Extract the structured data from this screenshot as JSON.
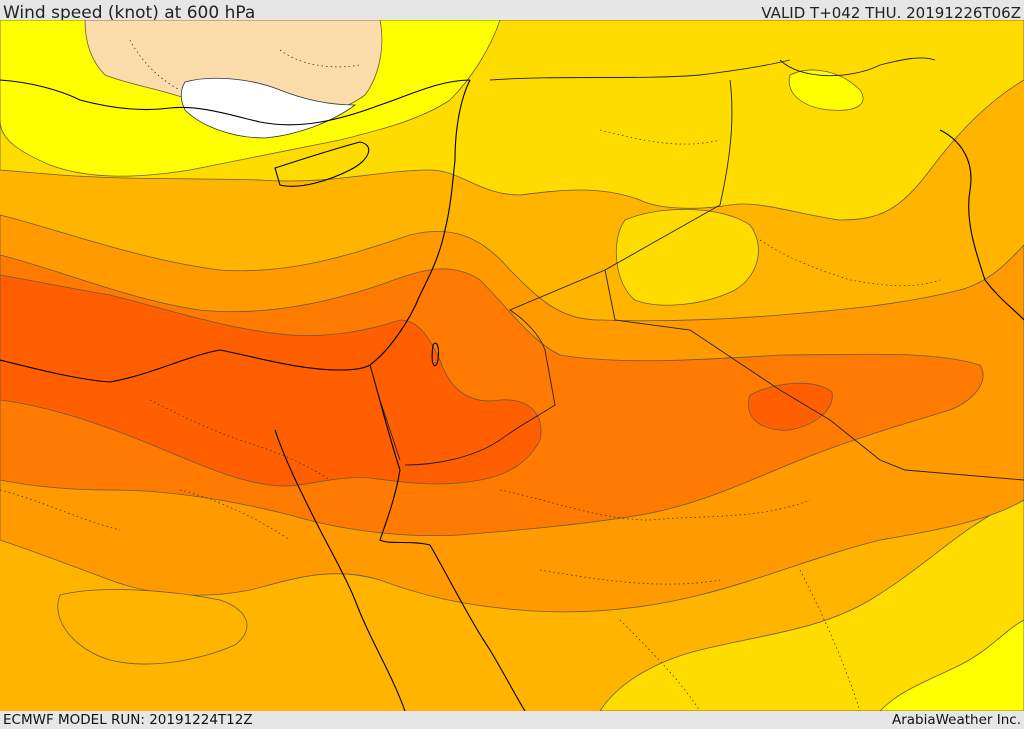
{
  "header": {
    "title": "Wind speed (knot) at 600 hPa",
    "valid_time": "VALID T+042 THU. 20191226T06Z"
  },
  "footer": {
    "model_run": "ECMWF MODEL RUN: 20191224T12Z",
    "credit": "ArabiaWeather Inc."
  },
  "map": {
    "variable": "wind speed",
    "unit": "knot",
    "pressure_level": "600 hPa",
    "shading_colors": {
      "white": "#ffffff",
      "peach": "#fcdcaa",
      "yellow": "#ffff00",
      "gold": "#ffdc00",
      "amber": "#ffb400",
      "orange": "#ff9a00",
      "dark_orange": "#ff7a00",
      "red_orange": "#ff5f00"
    },
    "coastline_color": "#000000",
    "contour_color": "#5a4a3a"
  }
}
